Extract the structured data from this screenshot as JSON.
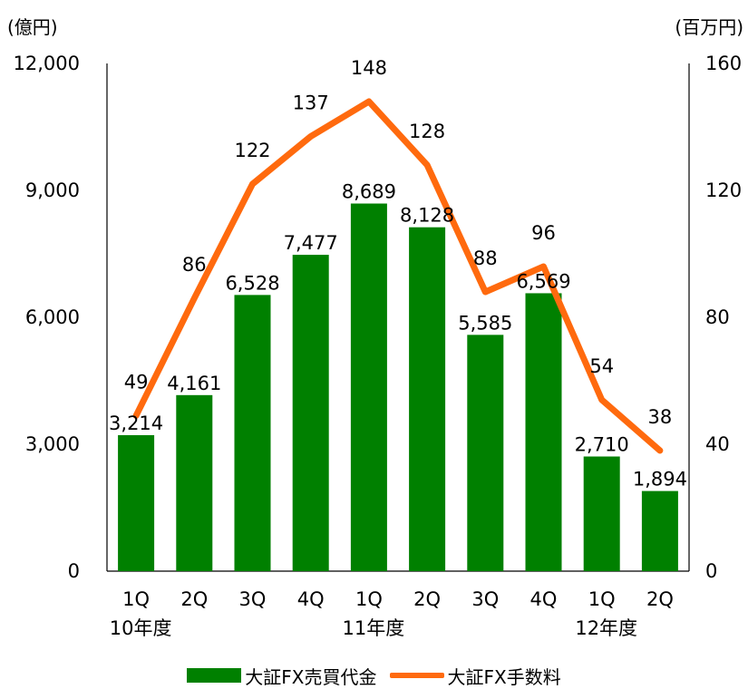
{
  "chart_data": {
    "type": "bar",
    "categories": [
      "1Q",
      "2Q",
      "3Q",
      "4Q",
      "1Q",
      "2Q",
      "3Q",
      "4Q",
      "1Q",
      "2Q"
    ],
    "groups": [
      {
        "label": "10年度",
        "category_index": 0
      },
      {
        "label": "11年度",
        "category_index": 4
      },
      {
        "label": "12年度",
        "category_index": 8
      }
    ],
    "series": [
      {
        "name": "大証FX売買代金",
        "type": "bar",
        "axis": "left",
        "color": "#008000",
        "values": [
          3214,
          4161,
          6528,
          7477,
          8689,
          8128,
          5585,
          6569,
          2710,
          1894
        ],
        "labels": [
          "3,214",
          "4,161",
          "6,528",
          "7,477",
          "8,689",
          "8,128",
          "5,585",
          "6,569",
          "2,710",
          "1,894"
        ]
      },
      {
        "name": "大証FX手数料",
        "type": "line",
        "axis": "right",
        "color": "#ff6a0e",
        "values": [
          49,
          86,
          122,
          137,
          148,
          128,
          88,
          96,
          54,
          38
        ],
        "labels": [
          "49",
          "86",
          "122",
          "137",
          "148",
          "128",
          "88",
          "96",
          "54",
          "38"
        ]
      }
    ],
    "left_axis": {
      "unit": "(億円)",
      "ylim": [
        0,
        12000
      ],
      "ticks": [
        0,
        3000,
        6000,
        9000,
        12000
      ],
      "tick_labels": [
        "0",
        "3,000",
        "6,000",
        "9,000",
        "12,000"
      ]
    },
    "right_axis": {
      "unit": "(百万円)",
      "ylim": [
        0,
        160
      ],
      "ticks": [
        0,
        40,
        80,
        120,
        160
      ],
      "tick_labels": [
        "0",
        "40",
        "80",
        "120",
        "160"
      ]
    },
    "grid": false,
    "legend_position": "bottom-center"
  }
}
